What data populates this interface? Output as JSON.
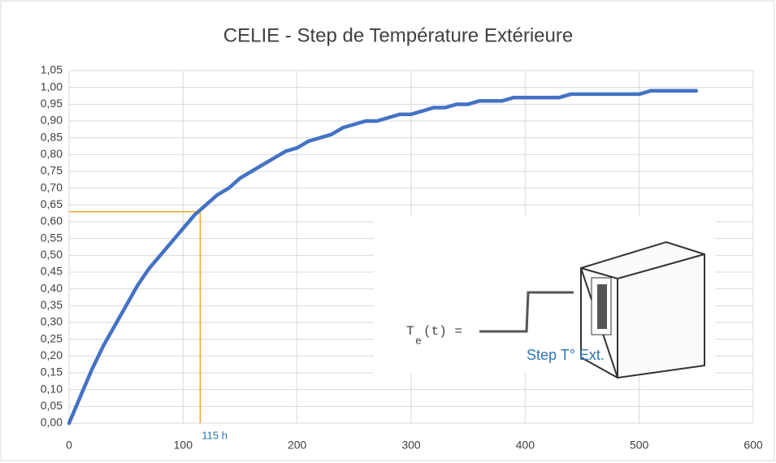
{
  "chart_data": {
    "type": "line",
    "title": "CELIE - Step de Température Extérieure",
    "x": [
      0,
      10,
      20,
      30,
      40,
      50,
      60,
      70,
      80,
      90,
      100,
      110,
      120,
      130,
      140,
      150,
      160,
      170,
      180,
      190,
      200,
      210,
      220,
      230,
      240,
      250,
      260,
      270,
      280,
      290,
      300,
      310,
      320,
      330,
      340,
      350,
      360,
      370,
      380,
      390,
      400,
      410,
      420,
      430,
      440,
      450,
      460,
      470,
      480,
      490,
      500,
      510,
      520,
      530,
      540,
      550
    ],
    "series": [
      {
        "name": "Step",
        "color": "#4472c4",
        "values": [
          0,
          0.08,
          0.16,
          0.23,
          0.29,
          0.35,
          0.41,
          0.46,
          0.5,
          0.54,
          0.58,
          0.62,
          0.65,
          0.68,
          0.7,
          0.73,
          0.75,
          0.77,
          0.79,
          0.81,
          0.82,
          0.84,
          0.85,
          0.86,
          0.88,
          0.89,
          0.9,
          0.9,
          0.91,
          0.92,
          0.92,
          0.93,
          0.94,
          0.94,
          0.95,
          0.95,
          0.96,
          0.96,
          0.96,
          0.97,
          0.97,
          0.97,
          0.97,
          0.97,
          0.98,
          0.98,
          0.98,
          0.98,
          0.98,
          0.98,
          0.98,
          0.99,
          0.99,
          0.99,
          0.99,
          0.99
        ]
      }
    ],
    "xlim": [
      0,
      600
    ],
    "xticks": [
      0,
      100,
      200,
      300,
      400,
      500,
      600
    ],
    "ylim": [
      0,
      1.05
    ],
    "yticks": [
      {
        "value": 0,
        "label": "0,00"
      },
      {
        "value": 0.05,
        "label": "0,05"
      },
      {
        "value": 0.1,
        "label": "0,10"
      },
      {
        "value": 0.15,
        "label": "0,15"
      },
      {
        "value": 0.2,
        "label": "0,20"
      },
      {
        "value": 0.25,
        "label": "0,25"
      },
      {
        "value": 0.3,
        "label": "0,30"
      },
      {
        "value": 0.35,
        "label": "0,35"
      },
      {
        "value": 0.4,
        "label": "0,40"
      },
      {
        "value": 0.45,
        "label": "0,45"
      },
      {
        "value": 0.5,
        "label": "0,50"
      },
      {
        "value": 0.55,
        "label": "0,55"
      },
      {
        "value": 0.6,
        "label": "0,60"
      },
      {
        "value": 0.65,
        "label": "0,65"
      },
      {
        "value": 0.7,
        "label": "0,70"
      },
      {
        "value": 0.75,
        "label": "0,75"
      },
      {
        "value": 0.8,
        "label": "0,80"
      },
      {
        "value": 0.85,
        "label": "0,85"
      },
      {
        "value": 0.9,
        "label": "0,90"
      },
      {
        "value": 0.95,
        "label": "0,95"
      },
      {
        "value": 1,
        "label": "1,00"
      },
      {
        "value": 1.05,
        "label": "1,05"
      }
    ],
    "grid": true,
    "annotation": {
      "x": 115,
      "y": 0.63,
      "label": "115 h",
      "color": "#f5a623"
    },
    "inset": {
      "symbol": "T",
      "subscript": "e",
      "formula_rest": "(t) =",
      "label": "Step T° Ext."
    }
  }
}
